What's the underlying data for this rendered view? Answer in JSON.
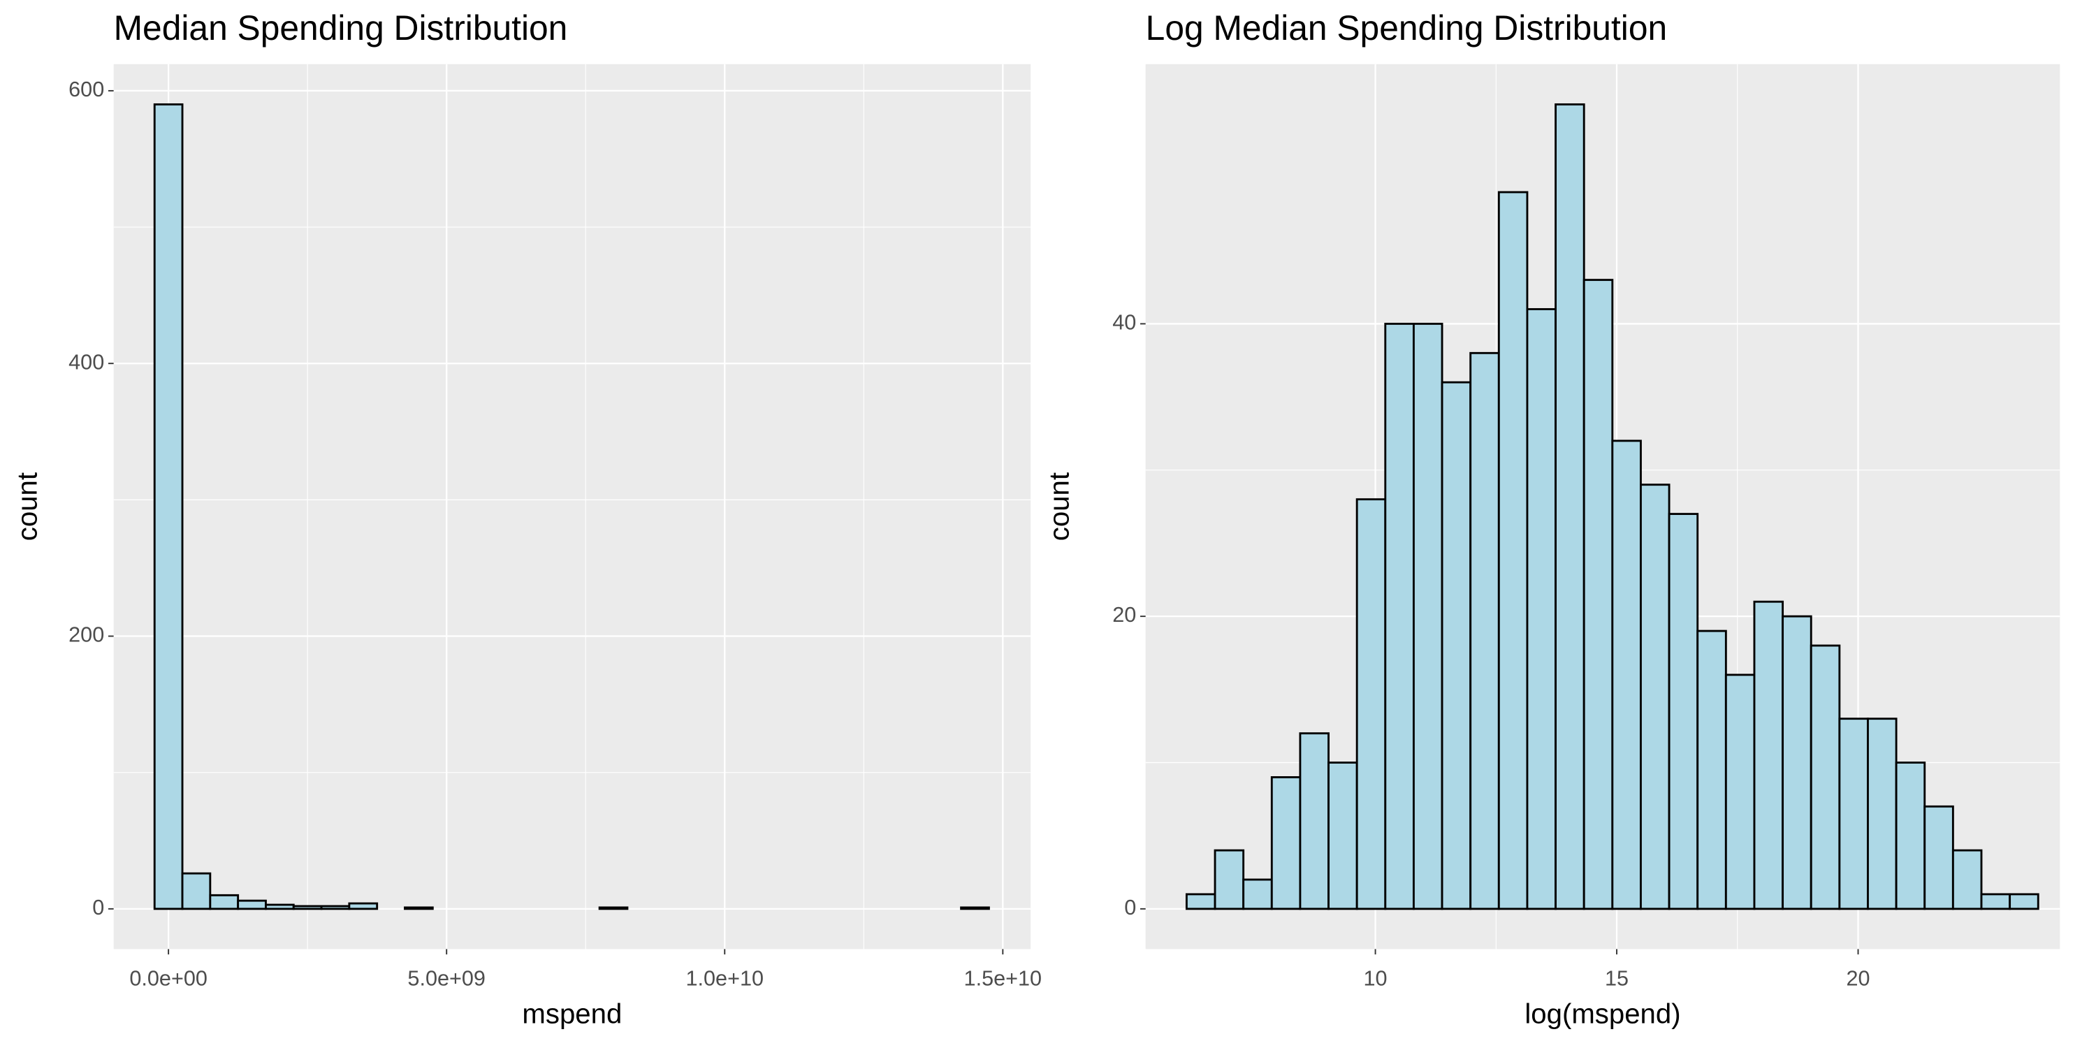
{
  "chart_data": [
    {
      "type": "histogram",
      "title": "Median Spending Distribution",
      "x_label": "mspend",
      "y_label": "count",
      "bins": [
        -250000000.0,
        250000000.0,
        750000000.0,
        1250000000.0,
        1750000000.0,
        2250000000.0,
        2750000000.0,
        3250000000.0,
        3750000000.0,
        4250000000.0,
        4750000000.0,
        5250000000.0,
        5750000000.0,
        6250000000.0,
        6750000000.0,
        7250000000.0,
        7750000000.0,
        8250000000.0,
        8750000000.0,
        9250000000.0,
        9750000000.0,
        10250000000.0,
        10750000000.0,
        11250000000.0,
        11750000000.0,
        12250000000.0,
        12750000000.0,
        13250000000.0,
        13750000000.0,
        14250000000.0,
        14750000000.0
      ],
      "values": [
        590,
        26,
        10,
        6,
        3,
        2,
        2,
        4,
        0,
        1,
        0,
        0,
        0,
        0,
        0,
        0,
        1,
        0,
        0,
        0,
        0,
        0,
        0,
        0,
        0,
        0,
        0,
        0,
        0,
        1
      ],
      "color": "#add8e6",
      "edge_color": "#000000",
      "xlim": [
        -986000000.0,
        15500000000.0
      ],
      "xticks": [
        {
          "value": 0,
          "label": "0.0e+00"
        },
        {
          "value": 5000000000.0,
          "label": "5.0e+09"
        },
        {
          "value": 10000000000.0,
          "label": "1.0e+10"
        },
        {
          "value": 15000000000.0,
          "label": "1.5e+10"
        }
      ],
      "ylim": [
        -29.5,
        619.5
      ],
      "yticks": [
        0,
        200,
        400,
        600
      ],
      "grid": true
    },
    {
      "type": "histogram",
      "title": "Log Median Spending Distribution",
      "x_label": "log(mspend)",
      "y_label": "count",
      "bins": [
        6.09,
        6.678,
        7.266,
        7.854,
        8.442,
        9.03,
        9.618,
        10.206,
        10.794,
        11.382,
        11.97,
        12.558,
        13.146,
        13.734,
        14.322,
        14.91,
        15.498,
        16.086,
        16.674,
        17.262,
        17.85,
        18.438,
        19.026,
        19.614,
        20.202,
        20.79,
        21.378,
        21.966,
        22.554,
        23.142,
        23.73
      ],
      "values": [
        1,
        4,
        2,
        9,
        12,
        10,
        28,
        40,
        40,
        36,
        38,
        49,
        41,
        55,
        43,
        32,
        29,
        27,
        19,
        16,
        21,
        20,
        18,
        13,
        13,
        10,
        7,
        4,
        1,
        1
      ],
      "color": "#add8e6",
      "edge_color": "#000000",
      "xlim": [
        5.24,
        24.18
      ],
      "xticks": [
        10,
        15,
        20
      ],
      "ylim": [
        -2.75,
        57.75
      ],
      "yticks": [
        0,
        20,
        40
      ],
      "grid": true
    }
  ]
}
